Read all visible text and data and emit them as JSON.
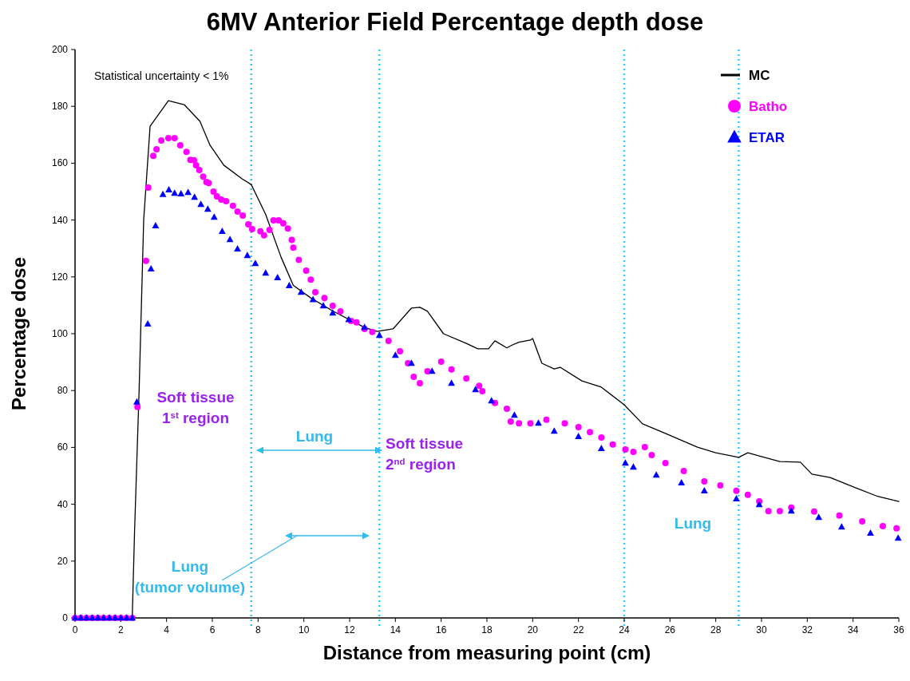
{
  "chart_data": {
    "type": "line",
    "title": "6MV Anterior Field Percentage depth dose",
    "xlabel": "Distance from measuring point (cm)",
    "ylabel": "Percentage dose",
    "xlim": [
      0,
      36
    ],
    "xticks": [
      0,
      2,
      4,
      6,
      8,
      10,
      12,
      14,
      16,
      18,
      20,
      22,
      24,
      26,
      28,
      30,
      32,
      34,
      36
    ],
    "ylim": [
      0,
      200
    ],
    "yticks": [
      0,
      20,
      40,
      60,
      80,
      100,
      120,
      140,
      160,
      180,
      200
    ],
    "grid": false,
    "legend": "top right",
    "series": [
      {
        "name": "MC",
        "marker": "none",
        "color": "#000000",
        "x": [
          0,
          2.5,
          2.6,
          2.8,
          3.0,
          3.28,
          4.08,
          4.77,
          5.46,
          5.9,
          6.5,
          7.3,
          7.7,
          8.33,
          9.0,
          9.54,
          10.3,
          11.26,
          12.65,
          13.2,
          13.9,
          14.7,
          15.07,
          15.4,
          16.1,
          17.1,
          17.6,
          18.07,
          18.35,
          18.87,
          19.1,
          19.4,
          19.9,
          20.0,
          20.18,
          20.4,
          20.94,
          21.2,
          22.15,
          23.0,
          24.0,
          24.8,
          25.8,
          27.2,
          28.0,
          29.0,
          29.4,
          29.9,
          30.8,
          31.7,
          32.2,
          33.0,
          34.1,
          35.1,
          36
        ],
        "values": [
          0,
          0,
          30,
          80,
          140,
          173,
          182,
          180.6,
          174.7,
          166.3,
          159.3,
          154.5,
          152.5,
          142,
          127,
          117,
          112.6,
          108,
          102.2,
          100.8,
          101.7,
          109,
          109.3,
          107.9,
          100,
          96.6,
          94.7,
          94.7,
          97.5,
          95,
          96,
          97,
          97.8,
          98.3,
          94.4,
          89.6,
          87.6,
          88.2,
          83.4,
          81.2,
          75,
          68.3,
          64.9,
          60.1,
          58.1,
          56.5,
          58.1,
          57,
          55,
          54.8,
          50.6,
          49.4,
          45.8,
          42.7,
          41
        ]
      },
      {
        "name": "Batho",
        "type": "scatter",
        "marker": "circle",
        "color": "#ff00ff",
        "x": [
          0,
          0.25,
          0.5,
          0.75,
          1,
          1.25,
          1.5,
          1.75,
          2,
          2.25,
          2.5,
          2.73,
          3.1,
          3.2,
          3.42,
          3.56,
          3.77,
          4.08,
          4.35,
          4.6,
          4.87,
          5.04,
          5.2,
          5.29,
          5.43,
          5.6,
          5.74,
          5.84,
          6.05,
          6.2,
          6.39,
          6.6,
          6.9,
          7.1,
          7.33,
          7.57,
          7.74,
          8.1,
          8.26,
          8.5,
          8.67,
          8.9,
          9.1,
          9.3,
          9.47,
          9.54,
          9.78,
          10.1,
          10.3,
          10.5,
          10.9,
          11.26,
          11.6,
          12.06,
          12.3,
          12.65,
          12.99,
          13.7,
          14.2,
          14.55,
          14.8,
          15.07,
          15.4,
          16.0,
          16.45,
          17.1,
          17.66,
          17.8,
          18.35,
          18.87,
          19.04,
          19.4,
          19.9,
          20.6,
          21.4,
          22.0,
          22.5,
          23.0,
          23.5,
          24.05,
          24.4,
          24.9,
          25.2,
          25.8,
          26.6,
          27.5,
          28.2,
          28.9,
          29.4,
          29.9,
          30.3,
          30.8,
          31.3,
          32.3,
          33.4,
          34.4,
          35.3,
          35.9
        ],
        "values": [
          0,
          0,
          0,
          0,
          0,
          0,
          0,
          0,
          0,
          0,
          0,
          74.2,
          125.6,
          151.4,
          162.6,
          164.9,
          168,
          168.8,
          168.8,
          166.3,
          164,
          161.2,
          161,
          159.3,
          157.6,
          155.3,
          153.4,
          153,
          150,
          148.3,
          147.2,
          146.6,
          145,
          143,
          141.6,
          138.5,
          136.8,
          136,
          134.6,
          136.5,
          139.9,
          139.9,
          138.8,
          137,
          133,
          130.3,
          126,
          122.2,
          119,
          114.6,
          112.6,
          109.8,
          107.9,
          104.5,
          104,
          101.7,
          100.6,
          97.5,
          93.8,
          89.6,
          84.8,
          82.6,
          86.8,
          90.2,
          87.4,
          84.3,
          81.7,
          79.8,
          75.6,
          73.6,
          69.1,
          68.5,
          68.5,
          69.7,
          68.5,
          67.1,
          65.4,
          63.5,
          61,
          59.3,
          58.4,
          60.1,
          57.3,
          54.5,
          51.7,
          48,
          46.6,
          44.7,
          43.3,
          41,
          37.6,
          37.6,
          38.8,
          37.4,
          36,
          34,
          32.3,
          31.5
        ]
      },
      {
        "name": "ETAR",
        "type": "scatter",
        "marker": "triangle",
        "color": "#0000ff",
        "x": [
          0,
          0.25,
          0.5,
          0.75,
          1,
          1.25,
          1.5,
          1.75,
          2,
          2.25,
          2.5,
          2.7,
          3.18,
          3.32,
          3.52,
          3.84,
          4.1,
          4.35,
          4.63,
          4.94,
          5.22,
          5.5,
          5.8,
          6.08,
          6.43,
          6.77,
          7.1,
          7.53,
          7.88,
          8.33,
          8.85,
          9.36,
          9.88,
          10.4,
          10.85,
          11.26,
          11.96,
          12.65,
          13.3,
          14.0,
          14.7,
          15.6,
          16.45,
          17.5,
          18.2,
          19.2,
          20.25,
          20.94,
          22.0,
          23.0,
          24.05,
          24.4,
          25.4,
          26.5,
          27.5,
          28.9,
          29.9,
          31.3,
          32.5,
          33.5,
          34.76,
          35.97
        ],
        "values": [
          0,
          0,
          0,
          0,
          0,
          0,
          0,
          0,
          0,
          0,
          0,
          76,
          103.4,
          122.8,
          138,
          149,
          150.6,
          149.4,
          149.2,
          149.7,
          148,
          145.5,
          143.8,
          141,
          136,
          133.1,
          129.8,
          127.5,
          124.7,
          121.3,
          119.7,
          116.9,
          114.6,
          112,
          109.8,
          107.3,
          105,
          102.2,
          99.4,
          92.4,
          89.6,
          86.8,
          82.6,
          80.3,
          76.4,
          71.3,
          68.5,
          65.7,
          63.8,
          59.6,
          54.5,
          53.1,
          50.3,
          47.5,
          44.7,
          41.9,
          39.9,
          37.6,
          35.4,
          32,
          29.8,
          28.1
        ]
      }
    ],
    "ref_lines": [
      {
        "axis": "x",
        "value": 7.7,
        "color": "#33ccff",
        "line_style": "dotted"
      },
      {
        "axis": "x",
        "value": 13.3,
        "color": "#33ccff",
        "line_style": "dotted"
      },
      {
        "axis": "x",
        "value": 24,
        "color": "#33ccff",
        "line_style": "dotted"
      },
      {
        "axis": "x",
        "value": 29,
        "color": "#33ccff",
        "line_style": "dotted"
      }
    ],
    "annotations": [
      "Statistical uncertainty < 1%",
      "Soft tissue 1$^{st}$ region",
      "Lung",
      "Soft tissue 2$^{nd}$ region",
      "Lung (tumor volume)",
      "Lung"
    ]
  }
}
